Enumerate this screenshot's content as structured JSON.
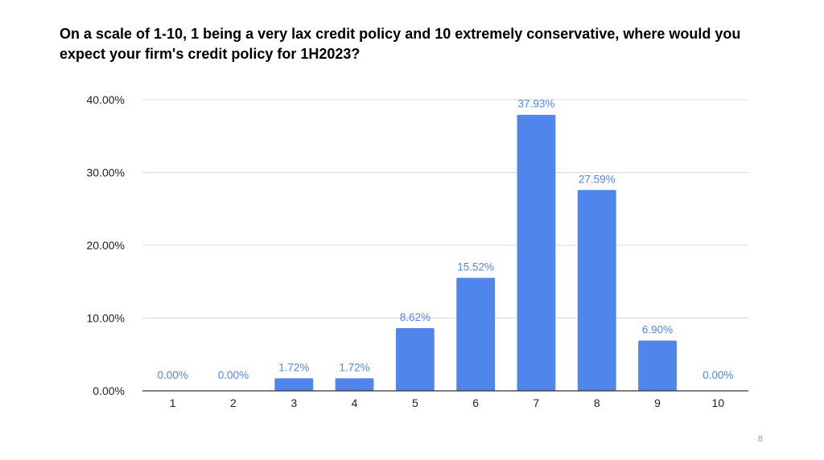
{
  "slide": {
    "page_number": "8"
  },
  "colors": {
    "bar": "#5086ec",
    "data_label": "#5086ec",
    "gridline": "#d9d9d9",
    "axis": "#333333",
    "tick_label": "#222222"
  },
  "chart_data": {
    "type": "bar",
    "title": "On a scale of 1-10, 1 being a very lax credit policy and 10 extremely conservative, where would you expect your firm's credit policy for 1H2023?",
    "xlabel": "",
    "ylabel": "",
    "categories": [
      "1",
      "2",
      "3",
      "4",
      "5",
      "6",
      "7",
      "8",
      "9",
      "10"
    ],
    "values": [
      0.0,
      0.0,
      1.72,
      1.72,
      8.62,
      15.52,
      37.93,
      27.59,
      6.9,
      0.0
    ],
    "data_labels": [
      "0.00%",
      "0.00%",
      "1.72%",
      "1.72%",
      "8.62%",
      "15.52%",
      "37.93%",
      "27.59%",
      "6.90%",
      "0.00%"
    ],
    "ylim": [
      0,
      40
    ],
    "yticks": [
      0,
      10,
      20,
      30,
      40
    ],
    "ytick_labels": [
      "0.00%",
      "10.00%",
      "20.00%",
      "30.00%",
      "40.00%"
    ],
    "grid": true,
    "legend": "none"
  }
}
